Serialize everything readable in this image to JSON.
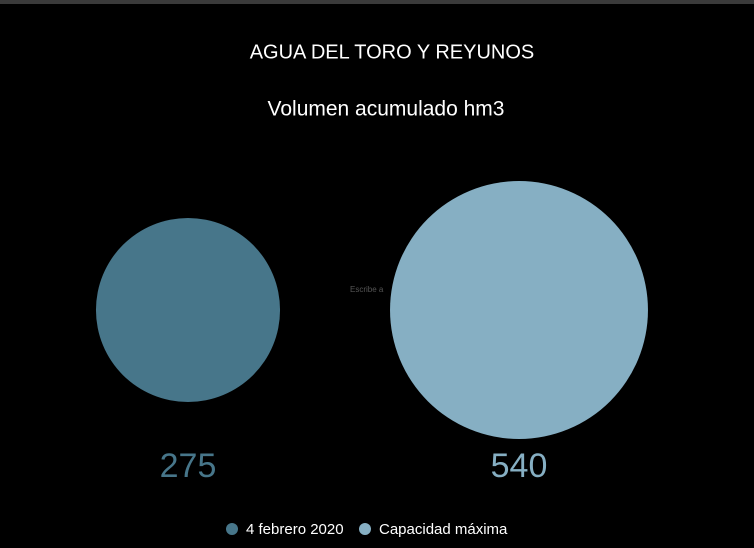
{
  "chart_data": {
    "type": "bubble",
    "title": "AGUA DEL TORO Y REYUNOS",
    "subtitle": "Volumen acumulado hm3",
    "annotation": "Escribe a",
    "series": [
      {
        "name": "4 febrero 2020",
        "color": "#47768a",
        "values": [
          275
        ]
      },
      {
        "name": "Capacidad máxima",
        "color": "#86afc3",
        "values": [
          540
        ]
      }
    ]
  }
}
